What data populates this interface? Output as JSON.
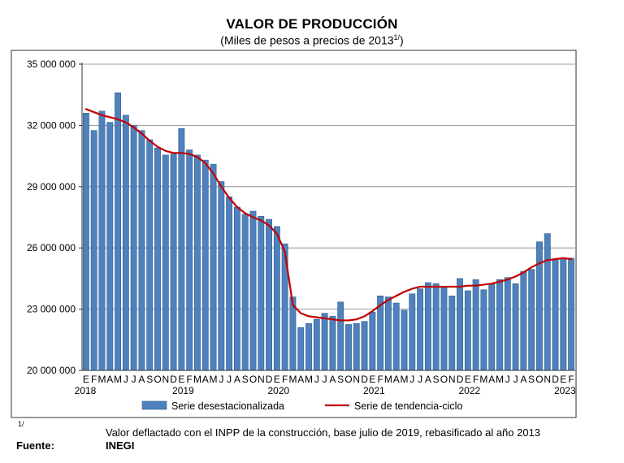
{
  "chart_data": {
    "type": "bar",
    "title": "VALOR DE PRODUCCIÓN",
    "subtitle": "(Miles de pesos a precios de 2013",
    "subtitle_note": "1/",
    "subtitle_close": ")",
    "ylim": [
      20000000,
      35000000
    ],
    "y_ticks": [
      20000000,
      23000000,
      26000000,
      29000000,
      32000000,
      35000000
    ],
    "y_tick_labels": [
      "20 000 000",
      "23 000 000",
      "26 000 000",
      "29 000 000",
      "32 000 000",
      "35 000 000"
    ],
    "month_letters": [
      "E",
      "F",
      "M",
      "A",
      "M",
      "J",
      "J",
      "A",
      "S",
      "O",
      "N",
      "D",
      "E",
      "F",
      "M",
      "A",
      "M",
      "J",
      "J",
      "A",
      "S",
      "O",
      "N",
      "D",
      "E",
      "F",
      "M",
      "A",
      "M",
      "J",
      "J",
      "A",
      "S",
      "O",
      "N",
      "D",
      "E",
      "F",
      "M",
      "A",
      "M",
      "J",
      "J",
      "A",
      "S",
      "O",
      "N",
      "D",
      "E",
      "F",
      "M",
      "A",
      "M",
      "J",
      "J",
      "A",
      "S",
      "O",
      "N",
      "D",
      "E",
      "F"
    ],
    "years": [
      {
        "label": "2018",
        "index": 0
      },
      {
        "label": "2019",
        "index": 12
      },
      {
        "label": "2020",
        "index": 24
      },
      {
        "label": "2021",
        "index": 36
      },
      {
        "label": "2022",
        "index": 48
      },
      {
        "label": "2023",
        "index": 60
      }
    ],
    "series": [
      {
        "name": "Serie desestacionalizada",
        "type": "bar",
        "color": "#4f81bd",
        "values": [
          32600000,
          31750000,
          32700000,
          32150000,
          33600000,
          32500000,
          32000000,
          31750000,
          31300000,
          30900000,
          30550000,
          30600000,
          31850000,
          30800000,
          30550000,
          30300000,
          30100000,
          29250000,
          28500000,
          28000000,
          27650000,
          27800000,
          27550000,
          27400000,
          27050000,
          26200000,
          23600000,
          22100000,
          22300000,
          22500000,
          22800000,
          22650000,
          23350000,
          22250000,
          22300000,
          22400000,
          22850000,
          23650000,
          23600000,
          23300000,
          22950000,
          23750000,
          24000000,
          24300000,
          24250000,
          24050000,
          23650000,
          24500000,
          23900000,
          24450000,
          23950000,
          24250000,
          24450000,
          24550000,
          24250000,
          24850000,
          24950000,
          26300000,
          26700000,
          25450000,
          25500000,
          25500000
        ]
      },
      {
        "name": "Serie de tendencia-ciclo",
        "type": "line",
        "color": "#c00000",
        "values": [
          32800000,
          32650000,
          32500000,
          32400000,
          32300000,
          32150000,
          31900000,
          31600000,
          31250000,
          30950000,
          30750000,
          30650000,
          30650000,
          30600000,
          30450000,
          30150000,
          29650000,
          29000000,
          28450000,
          28000000,
          27700000,
          27500000,
          27350000,
          27100000,
          26700000,
          25800000,
          23200000,
          22800000,
          22650000,
          22600000,
          22550000,
          22500000,
          22450000,
          22450000,
          22500000,
          22650000,
          22900000,
          23200000,
          23450000,
          23650000,
          23850000,
          24000000,
          24100000,
          24100000,
          24100000,
          24100000,
          24100000,
          24100000,
          24150000,
          24150000,
          24200000,
          24250000,
          24350000,
          24450000,
          24600000,
          24800000,
          25050000,
          25250000,
          25400000,
          25450000,
          25500000,
          25450000
        ]
      }
    ],
    "legend": [
      "Serie desestacionalizada",
      "Serie de tendencia-ciclo"
    ],
    "legend_position": "bottom"
  },
  "footnote": {
    "mark": "1/",
    "text": "Valor deflactado con el INPP de la construcción, base julio de 2019, rebasificado al año 2013"
  },
  "source": {
    "label": "Fuente:",
    "value": "INEGI"
  }
}
